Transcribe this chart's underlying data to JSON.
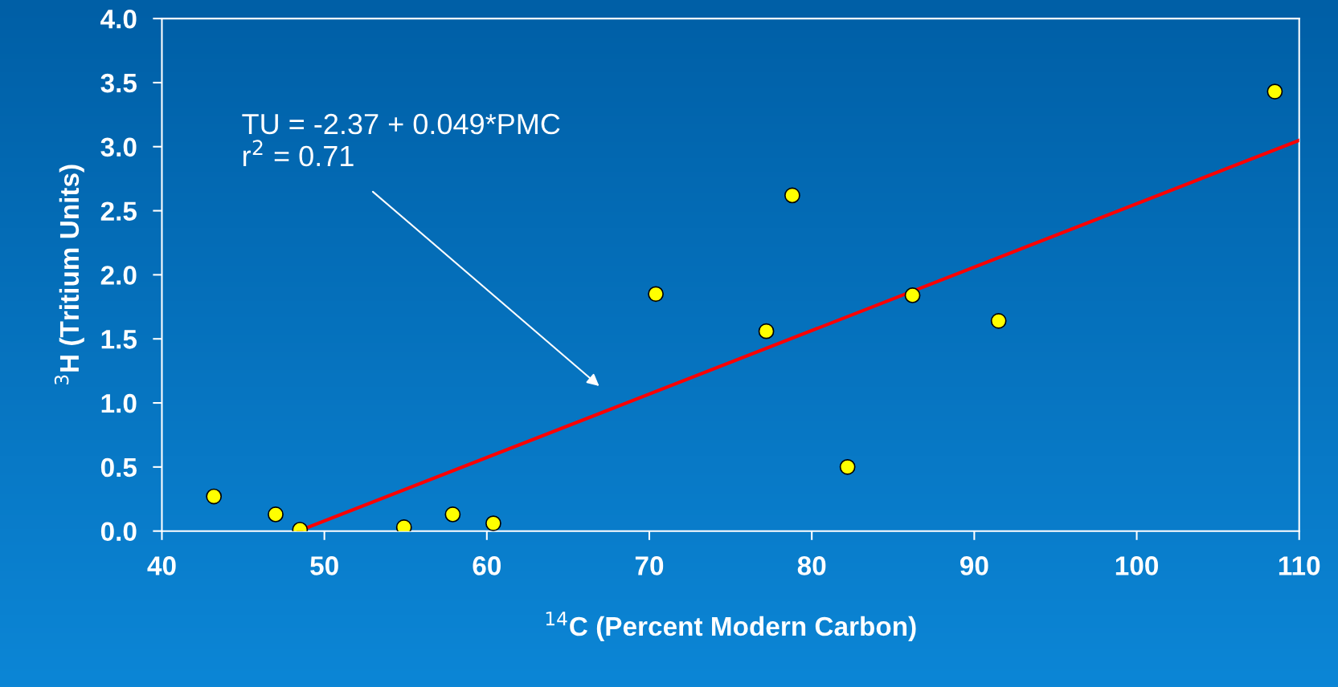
{
  "chart_data": {
    "type": "scatter",
    "xlabel": "$^{14}$C (Percent Modern Carbon)",
    "ylabel": "$^{3}$H (Tritium Units)",
    "x": [
      43.2,
      47.0,
      48.5,
      54.9,
      57.9,
      60.4,
      70.4,
      77.2,
      78.8,
      82.2,
      86.2,
      91.5,
      108.5
    ],
    "series": [
      {
        "color": "#ffff00",
        "values": [
          0.27,
          0.13,
          0.01,
          0.03,
          0.13,
          0.06,
          1.85,
          1.56,
          2.62,
          0.5,
          1.84,
          1.64,
          3.43
        ]
      },
      {
        "type": "line",
        "color": "#ff0000",
        "x": [
          48.4,
          110
        ],
        "values": [
          0,
          3.05
        ],
        "marker": "none"
      }
    ],
    "annotations": [
      "TU = -2.37 + 0.049*PMC\nr$^{2}$ = 0.71"
    ],
    "xlim": [
      40,
      110
    ],
    "ylim": [
      0,
      4
    ],
    "xticks": [
      40,
      50,
      60,
      70,
      80,
      90,
      100,
      110
    ],
    "yticks": [
      {
        "value": 0,
        "label": "0.0"
      },
      {
        "value": 0.5,
        "label": "0.5"
      },
      {
        "value": 1,
        "label": "1.0"
      },
      {
        "value": 1.5,
        "label": "1.5"
      },
      {
        "value": 2,
        "label": "2.0"
      },
      {
        "value": 2.5,
        "label": "2.5"
      },
      {
        "value": 3,
        "label": "3.0"
      },
      {
        "value": 3.5,
        "label": "3.5"
      },
      {
        "value": 4,
        "label": "4.0"
      }
    ],
    "marker": "circle",
    "grid": false,
    "legend": false
  }
}
